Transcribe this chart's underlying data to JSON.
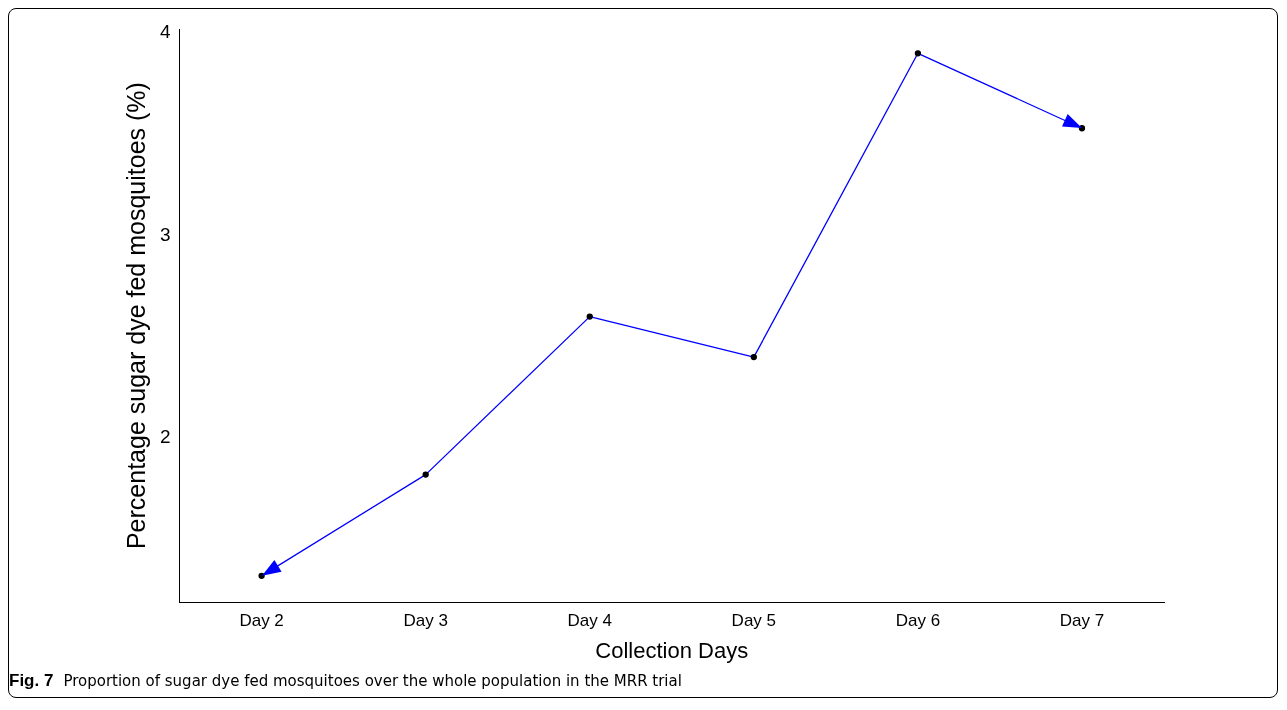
{
  "chart_data": {
    "type": "line",
    "xlabel": "Collection Days",
    "ylabel": "Percentage sugar dye fed mosquitoes (%)",
    "categories": [
      "Day 2",
      "Day 3",
      "Day 4",
      "Day 5",
      "Day 6",
      "Day 7"
    ],
    "series": [
      {
        "color": "#0000ff",
        "values": [
          1.32,
          1.82,
          2.6,
          2.4,
          3.9,
          3.53
        ]
      }
    ],
    "ylim": [
      1.19,
      4.02
    ],
    "yticks": [
      2,
      3,
      4
    ],
    "marker": "circle",
    "grid": false,
    "legend": false,
    "annotations": [
      "Fig. 7",
      "Proportion of sugar dye fed mosquitoes over the whole population in the MRR trial"
    ]
  }
}
